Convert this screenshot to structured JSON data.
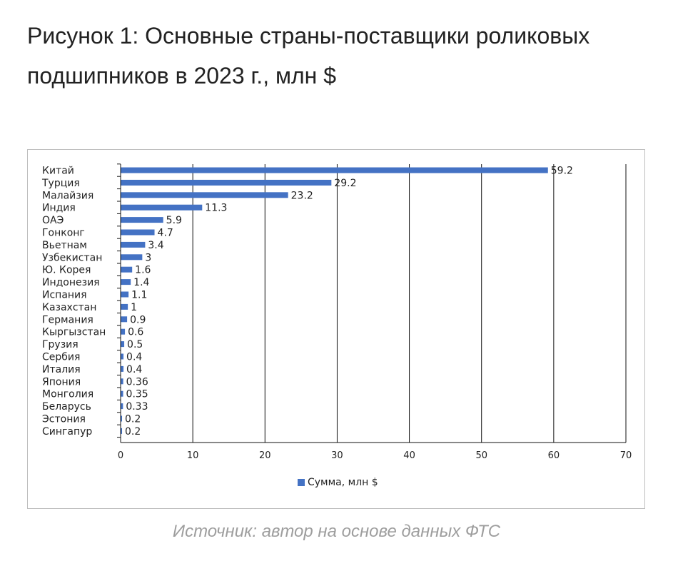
{
  "header": {
    "title": "Рисунок 1: Основные страны-поставщики роликовых подшипников в 2023 г., млн $"
  },
  "footer": {
    "source": "Источник: автор на основе данных ФТС"
  },
  "chart_data": {
    "type": "bar",
    "orientation": "horizontal",
    "title": "",
    "xlabel": "",
    "ylabel": "",
    "categories": [
      "Китай",
      "Турция",
      "Малайзия",
      "Индия",
      "ОАЭ",
      "Гонконг",
      "Вьетнам",
      "Узбекистан",
      "Ю. Корея",
      "Индонезия",
      "Испания",
      "Казахстан",
      "Германия",
      "Кыргызстан",
      "Грузия",
      "Сербия",
      "Италия",
      "Япония",
      "Монголия",
      "Беларусь",
      "Эстония",
      "Сингапур"
    ],
    "series": [
      {
        "name": "Сумма, млн $",
        "values": [
          59.2,
          29.2,
          23.2,
          11.3,
          5.9,
          4.7,
          3.4,
          3,
          1.6,
          1.4,
          1.1,
          1,
          0.9,
          0.6,
          0.5,
          0.4,
          0.4,
          0.36,
          0.35,
          0.33,
          0.2,
          0.2
        ],
        "labels": [
          "59.2",
          "29.2",
          "23.2",
          "11.3",
          "5.9",
          "4.7",
          "3.4",
          "3",
          "1.6",
          "1.4",
          "1.1",
          "1",
          "0.9",
          "0.6",
          "0.5",
          "0.4",
          "0.4",
          "0.36",
          "0.35",
          "0.33",
          "0.2",
          "0.2"
        ],
        "color": "#4472c4"
      }
    ],
    "xlim": [
      0,
      70
    ],
    "xticks": [
      "0",
      "10",
      "20",
      "30",
      "40",
      "50",
      "60",
      "70"
    ],
    "grid": "vertical",
    "legend_position": "bottom"
  }
}
